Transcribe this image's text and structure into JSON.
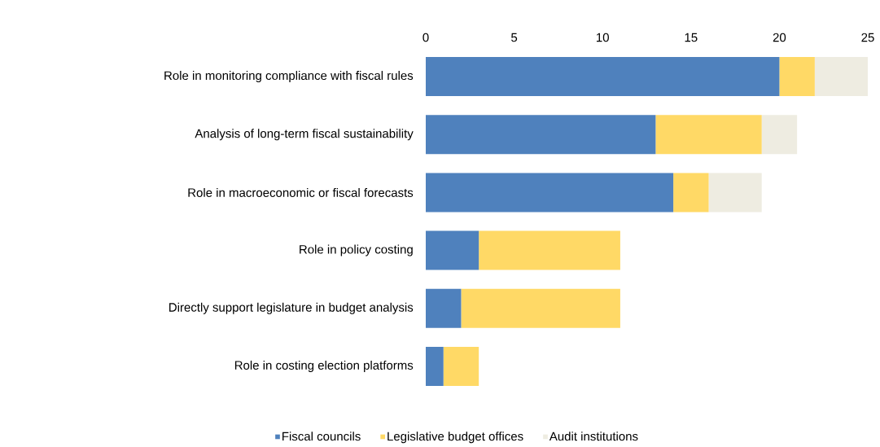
{
  "chart_data": {
    "type": "bar",
    "orientation": "horizontal",
    "stacked": true,
    "categories": [
      "Role in monitoring compliance with fiscal rules",
      "Analysis of long-term fiscal sustainability",
      "Role in macroeconomic or fiscal forecasts",
      "Role in policy costing",
      "Directly support legislature in budget analysis",
      "Role in costing election platforms"
    ],
    "series": [
      {
        "name": "Fiscal councils",
        "color": "#4f81bd",
        "values": [
          20,
          13,
          14,
          3,
          2,
          1
        ]
      },
      {
        "name": "Legislative budget offices",
        "color": "#ffd966",
        "values": [
          2,
          6,
          2,
          8,
          9,
          2
        ]
      },
      {
        "name": "Audit institutions",
        "color": "#eeece1",
        "values": [
          3,
          2,
          3,
          0,
          0,
          0
        ]
      }
    ],
    "xlim": [
      0,
      25
    ],
    "xticks": [
      0,
      5,
      10,
      15,
      20,
      25
    ],
    "legend": "bottom"
  }
}
